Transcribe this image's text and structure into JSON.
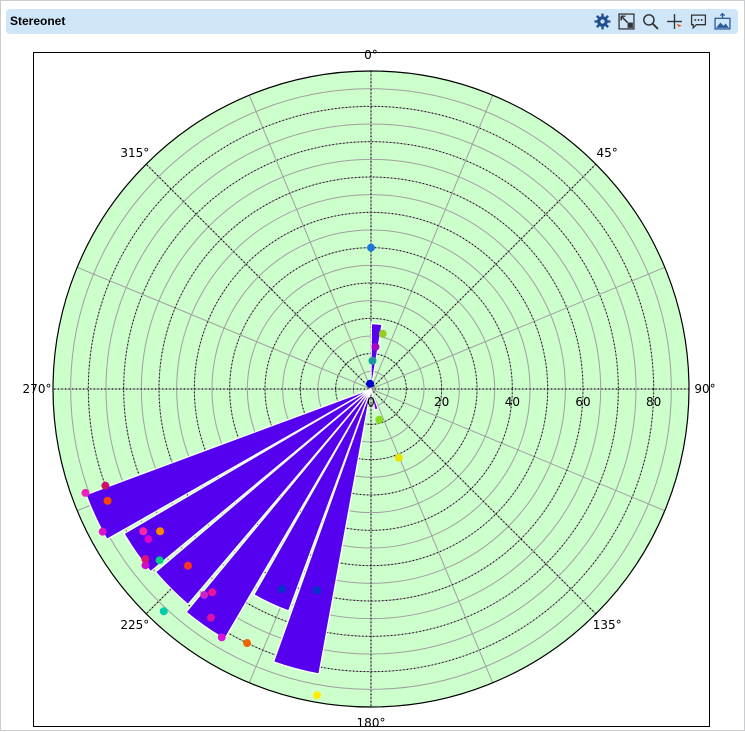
{
  "window": {
    "title": "Stereonet",
    "toolbar": [
      {
        "name": "settings-icon"
      },
      {
        "name": "zoom-extents-icon"
      },
      {
        "name": "zoom-icon"
      },
      {
        "name": "crosshair-icon"
      },
      {
        "name": "comment-icon"
      },
      {
        "name": "export-image-icon"
      }
    ]
  },
  "colors": {
    "title_bar": "#cfe6f8",
    "plot_background": "#ccffcc",
    "rose_fill": "#5500ee",
    "grid": "#a0a0a0"
  },
  "chart_data": {
    "type": "rose",
    "title": "",
    "azimuth_labels": [
      "0°",
      "45°",
      "90°",
      "135°",
      "180°",
      "225°",
      "270°",
      "315°"
    ],
    "radial_ticks": [
      0,
      20,
      40,
      60,
      80
    ],
    "radial_tick_labels": [
      "0",
      "20",
      "40",
      "60",
      "80"
    ],
    "r_max": 90,
    "radial_grid_step": 5,
    "azimuth_grid_step": 22.5,
    "grid": true,
    "petals": [
      {
        "az_from": 0,
        "az_to": 10,
        "value": 18.5
      },
      {
        "az_from": 160,
        "az_to": 170,
        "value": 6
      },
      {
        "az_from": 190,
        "az_to": 200,
        "value": 82
      },
      {
        "az_from": 200,
        "az_to": 210,
        "value": 67
      },
      {
        "az_from": 210,
        "az_to": 220,
        "value": 82
      },
      {
        "az_from": 220,
        "az_to": 230,
        "value": 80
      },
      {
        "az_from": 230,
        "az_to": 240,
        "value": 81
      },
      {
        "az_from": 240,
        "az_to": 250,
        "value": 86
      }
    ],
    "points": [
      {
        "az": 0,
        "dip": 40,
        "color": "#1e78dc"
      },
      {
        "az": 12,
        "dip": 16,
        "color": "#99cc22"
      },
      {
        "az": 6,
        "dip": 12,
        "color": "#aa00cc"
      },
      {
        "az": 3,
        "dip": 8,
        "color": "#1a9aa0"
      },
      {
        "az": 350,
        "dip": 1.5,
        "color": "#0000cc"
      },
      {
        "az": 165,
        "dip": 9,
        "color": "#88dd22"
      },
      {
        "az": 158,
        "dip": 21,
        "color": "#e6e600"
      },
      {
        "az": 190,
        "dip": 88,
        "color": "#ffee00"
      },
      {
        "az": 195,
        "dip": 59,
        "color": "#0033cc"
      },
      {
        "az": 204,
        "dip": 62,
        "color": "#0033cc"
      },
      {
        "az": 206,
        "dip": 80,
        "color": "#ee6600"
      },
      {
        "az": 211,
        "dip": 82,
        "color": "#dd11dd"
      },
      {
        "az": 215,
        "dip": 79,
        "color": "#dd11aa"
      },
      {
        "az": 219,
        "dip": 75,
        "color": "#cc22cc"
      },
      {
        "az": 218,
        "dip": 73,
        "color": "#ee1199"
      },
      {
        "az": 226,
        "dip": 72,
        "color": "#ff3322"
      },
      {
        "az": 223,
        "dip": 86,
        "color": "#00ccaa"
      },
      {
        "az": 231,
        "dip": 77,
        "color": "#00cc88"
      },
      {
        "az": 232,
        "dip": 81,
        "color": "#cc11cc"
      },
      {
        "az": 233,
        "dip": 80,
        "color": "#dd1177"
      },
      {
        "az": 236,
        "dip": 76,
        "color": "#dd00cc"
      },
      {
        "az": 236,
        "dip": 72,
        "color": "#ff8800"
      },
      {
        "az": 238,
        "dip": 76,
        "color": "#ff22aa"
      },
      {
        "az": 242,
        "dip": 86,
        "color": "#dd11cc"
      },
      {
        "az": 247,
        "dip": 81,
        "color": "#ff4400"
      },
      {
        "az": 250,
        "dip": 80,
        "color": "#cc1166"
      },
      {
        "az": 250,
        "dip": 86,
        "color": "#ee22bb"
      }
    ]
  }
}
